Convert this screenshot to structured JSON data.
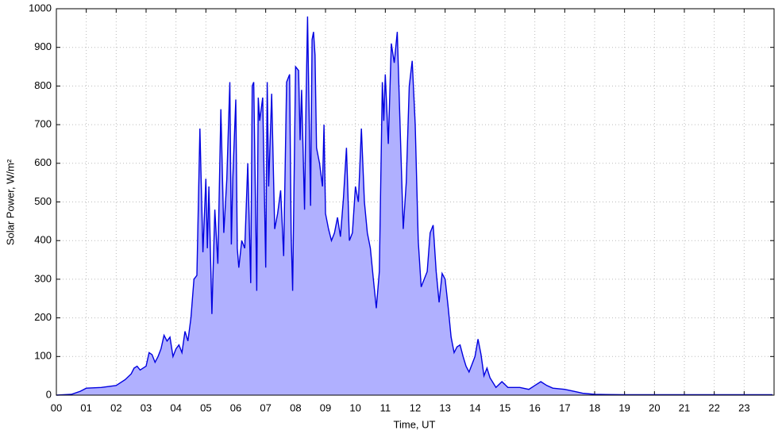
{
  "chart_data": {
    "type": "area",
    "xlabel": "Time, UT",
    "ylabel": "Solar Power, W/m²",
    "color": "#0000e0",
    "fill": "#b0b0ff",
    "grid": true,
    "xlim": [
      0,
      24
    ],
    "ylim": [
      0,
      1000
    ],
    "xticks": [
      {
        "value": 0,
        "label": "00"
      },
      {
        "value": 1,
        "label": "01"
      },
      {
        "value": 2,
        "label": "02"
      },
      {
        "value": 3,
        "label": "03"
      },
      {
        "value": 4,
        "label": "04"
      },
      {
        "value": 5,
        "label": "05"
      },
      {
        "value": 6,
        "label": "06"
      },
      {
        "value": 7,
        "label": "07"
      },
      {
        "value": 8,
        "label": "08"
      },
      {
        "value": 9,
        "label": "09"
      },
      {
        "value": 10,
        "label": "10"
      },
      {
        "value": 11,
        "label": "11"
      },
      {
        "value": 12,
        "label": "12"
      },
      {
        "value": 13,
        "label": "13"
      },
      {
        "value": 14,
        "label": "14"
      },
      {
        "value": 15,
        "label": "15"
      },
      {
        "value": 16,
        "label": "16"
      },
      {
        "value": 17,
        "label": "17"
      },
      {
        "value": 18,
        "label": "18"
      },
      {
        "value": 19,
        "label": "19"
      },
      {
        "value": 20,
        "label": "20"
      },
      {
        "value": 21,
        "label": "21"
      },
      {
        "value": 22,
        "label": "22"
      },
      {
        "value": 23,
        "label": "23"
      }
    ],
    "yticks": [
      0,
      100,
      200,
      300,
      400,
      500,
      600,
      700,
      800,
      900,
      1000
    ],
    "x": [
      0,
      0.5,
      0.8,
      1.0,
      1.5,
      2.0,
      2.3,
      2.5,
      2.6,
      2.7,
      2.8,
      3.0,
      3.1,
      3.2,
      3.3,
      3.4,
      3.5,
      3.6,
      3.7,
      3.8,
      3.9,
      4.0,
      4.1,
      4.2,
      4.3,
      4.4,
      4.5,
      4.6,
      4.7,
      4.8,
      4.9,
      5.0,
      5.05,
      5.1,
      5.2,
      5.3,
      5.4,
      5.5,
      5.6,
      5.7,
      5.8,
      5.85,
      5.9,
      6.0,
      6.05,
      6.1,
      6.2,
      6.3,
      6.4,
      6.5,
      6.55,
      6.6,
      6.7,
      6.75,
      6.8,
      6.9,
      7.0,
      7.05,
      7.1,
      7.2,
      7.3,
      7.4,
      7.5,
      7.6,
      7.7,
      7.8,
      7.85,
      7.9,
      8.0,
      8.1,
      8.15,
      8.2,
      8.3,
      8.35,
      8.4,
      8.5,
      8.55,
      8.6,
      8.65,
      8.7,
      8.8,
      8.9,
      8.95,
      9.0,
      9.1,
      9.2,
      9.3,
      9.4,
      9.5,
      9.6,
      9.7,
      9.8,
      9.9,
      10.0,
      10.1,
      10.2,
      10.3,
      10.4,
      10.5,
      10.6,
      10.7,
      10.8,
      10.9,
      10.95,
      11.0,
      11.1,
      11.2,
      11.3,
      11.4,
      11.5,
      11.6,
      11.7,
      11.8,
      11.9,
      12.0,
      12.1,
      12.2,
      12.3,
      12.4,
      12.5,
      12.6,
      12.7,
      12.8,
      12.9,
      13.0,
      13.1,
      13.2,
      13.3,
      13.4,
      13.5,
      13.6,
      13.7,
      13.8,
      13.9,
      14.0,
      14.1,
      14.2,
      14.3,
      14.4,
      14.5,
      14.7,
      14.9,
      15.1,
      15.5,
      15.8,
      16.0,
      16.2,
      16.4,
      16.6,
      17.0,
      17.3,
      17.6,
      18.0,
      19,
      20,
      21,
      22,
      23,
      23.95
    ],
    "values": [
      0,
      2,
      10,
      18,
      20,
      25,
      40,
      55,
      70,
      75,
      65,
      75,
      110,
      105,
      85,
      100,
      120,
      155,
      140,
      150,
      100,
      120,
      130,
      110,
      165,
      140,
      200,
      300,
      310,
      690,
      370,
      560,
      380,
      540,
      210,
      480,
      340,
      740,
      420,
      560,
      810,
      390,
      560,
      765,
      380,
      330,
      400,
      380,
      600,
      290,
      800,
      810,
      270,
      770,
      710,
      770,
      330,
      810,
      540,
      780,
      430,
      470,
      530,
      360,
      810,
      830,
      420,
      270,
      850,
      840,
      660,
      790,
      480,
      760,
      980,
      490,
      920,
      940,
      880,
      640,
      600,
      540,
      700,
      470,
      430,
      400,
      420,
      460,
      410,
      510,
      640,
      400,
      420,
      540,
      500,
      690,
      500,
      420,
      380,
      300,
      225,
      320,
      810,
      710,
      830,
      650,
      910,
      860,
      940,
      680,
      430,
      550,
      800,
      865,
      700,
      400,
      280,
      300,
      320,
      420,
      440,
      320,
      240,
      315,
      300,
      230,
      150,
      110,
      125,
      130,
      100,
      75,
      60,
      80,
      100,
      145,
      105,
      50,
      70,
      45,
      20,
      35,
      20,
      20,
      15,
      25,
      35,
      25,
      18,
      15,
      10,
      5,
      2,
      1,
      1,
      1,
      1,
      1,
      1
    ]
  }
}
